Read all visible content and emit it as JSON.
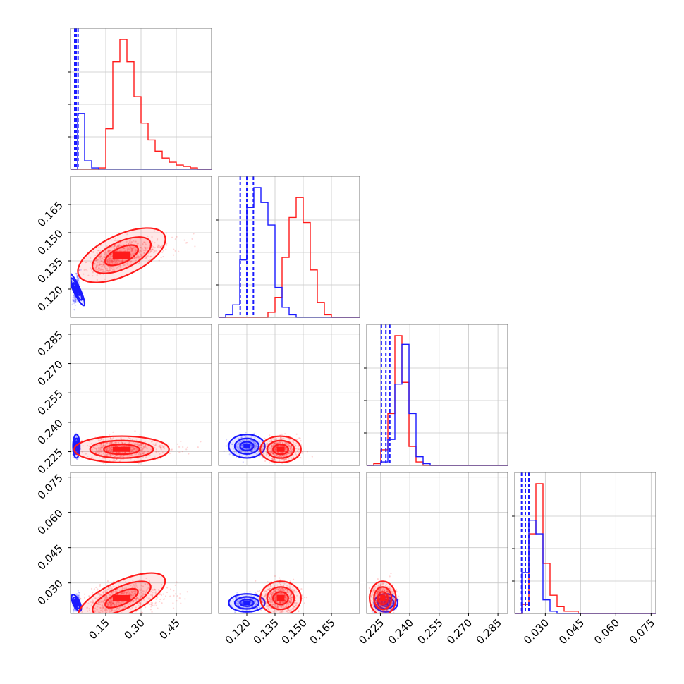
{
  "chart_data": {
    "type": "corner",
    "grid": true,
    "colors": {
      "model_a": "#1a1aff",
      "model_b": "#ff1a1a"
    },
    "series": [
      {
        "color_key": "model_a",
        "parameters": [
          {
            "mean": 0.025,
            "sd": 0.006,
            "quantiles": [
              0.018,
              0.024,
              0.032
            ]
          },
          {
            "mean": 0.12,
            "sd": 0.004,
            "quantiles": [
              0.1165,
              0.12,
              0.1235
            ]
          },
          {
            "mean": 0.2278,
            "sd": 0.0025,
            "quantiles": [
              0.2255,
              0.2278,
              0.2298
            ]
          },
          {
            "mean": 0.0215,
            "sd": 0.0016,
            "quantiles": [
              0.0199,
              0.0215,
              0.023
            ]
          }
        ]
      },
      {
        "color_key": "model_b",
        "parameters": [
          {
            "mean": 0.2,
            "sd": 0.07,
            "median": 0.2
          },
          {
            "mean": 0.138,
            "sd": 0.0045
          },
          {
            "mean": 0.2262,
            "sd": 0.0028
          },
          {
            "mean": 0.0235,
            "sd": 0.003
          }
        ]
      }
    ],
    "parameters": [
      {
        "range": [
          0.0,
          0.6
        ],
        "ticks": [
          0.15,
          0.3,
          0.45
        ],
        "tick_labels": [
          "0.15",
          "0.30",
          "0.45"
        ],
        "hist_a": [
          0,
          40,
          6,
          1,
          0,
          0,
          0,
          0,
          0,
          0,
          0,
          0,
          0,
          0,
          0,
          0,
          0,
          0,
          0,
          0
        ],
        "hist_b": [
          0,
          0,
          0,
          0,
          1,
          29,
          77,
          93,
          77,
          52,
          33,
          21,
          13,
          8,
          5,
          3,
          2,
          1,
          0,
          0
        ]
      },
      {
        "range": [
          0.105,
          0.18
        ],
        "ticks": [
          0.12,
          0.135,
          0.15,
          0.165
        ],
        "tick_labels": [
          "0.120",
          "0.135",
          "0.150",
          "0.165"
        ],
        "hist_a": [
          0,
          1,
          5,
          23,
          44,
          52,
          46,
          37,
          12,
          4,
          1,
          0,
          0,
          0,
          0,
          0,
          0,
          0,
          0,
          0
        ],
        "hist_b": [
          0,
          0,
          0,
          0,
          0,
          0,
          0,
          2,
          8,
          24,
          40,
          48,
          38,
          19,
          6,
          1,
          0,
          0,
          0,
          0
        ]
      },
      {
        "range": [
          0.218,
          0.29
        ],
        "ticks": [
          0.225,
          0.24,
          0.255,
          0.27,
          0.285
        ],
        "tick_labels": [
          "0.225",
          "0.240",
          "0.255",
          "0.270",
          "0.285"
        ],
        "hist_a": [
          0,
          0,
          2,
          15,
          47,
          70,
          30,
          5,
          1,
          0,
          0,
          0,
          0,
          0,
          0,
          0,
          0,
          0,
          0,
          0
        ],
        "hist_b": [
          0,
          1,
          9,
          30,
          75,
          48,
          11,
          2,
          0,
          0,
          0,
          0,
          0,
          0,
          0,
          0,
          0,
          0,
          0,
          0
        ]
      },
      {
        "range": [
          0.017,
          0.077
        ],
        "ticks": [
          0.03,
          0.045,
          0.06,
          0.075
        ],
        "tick_labels": [
          "0.030",
          "0.045",
          "0.060",
          "0.075"
        ],
        "hist_a": [
          0,
          18,
          41,
          35,
          6,
          1,
          0,
          0,
          0,
          0,
          0,
          0,
          0,
          0,
          0,
          0,
          0,
          0,
          0,
          0
        ],
        "hist_b": [
          0,
          4,
          35,
          57,
          22,
          8,
          3,
          1,
          1,
          0,
          0,
          0,
          0,
          0,
          0,
          0,
          0,
          0,
          0,
          0
        ]
      }
    ],
    "correlations": {
      "0-1": 0.6,
      "0-2": 0.0,
      "0-3": 0.3,
      "1-2": 0.0,
      "1-3": 0.0,
      "2-3": 0.0
    }
  }
}
